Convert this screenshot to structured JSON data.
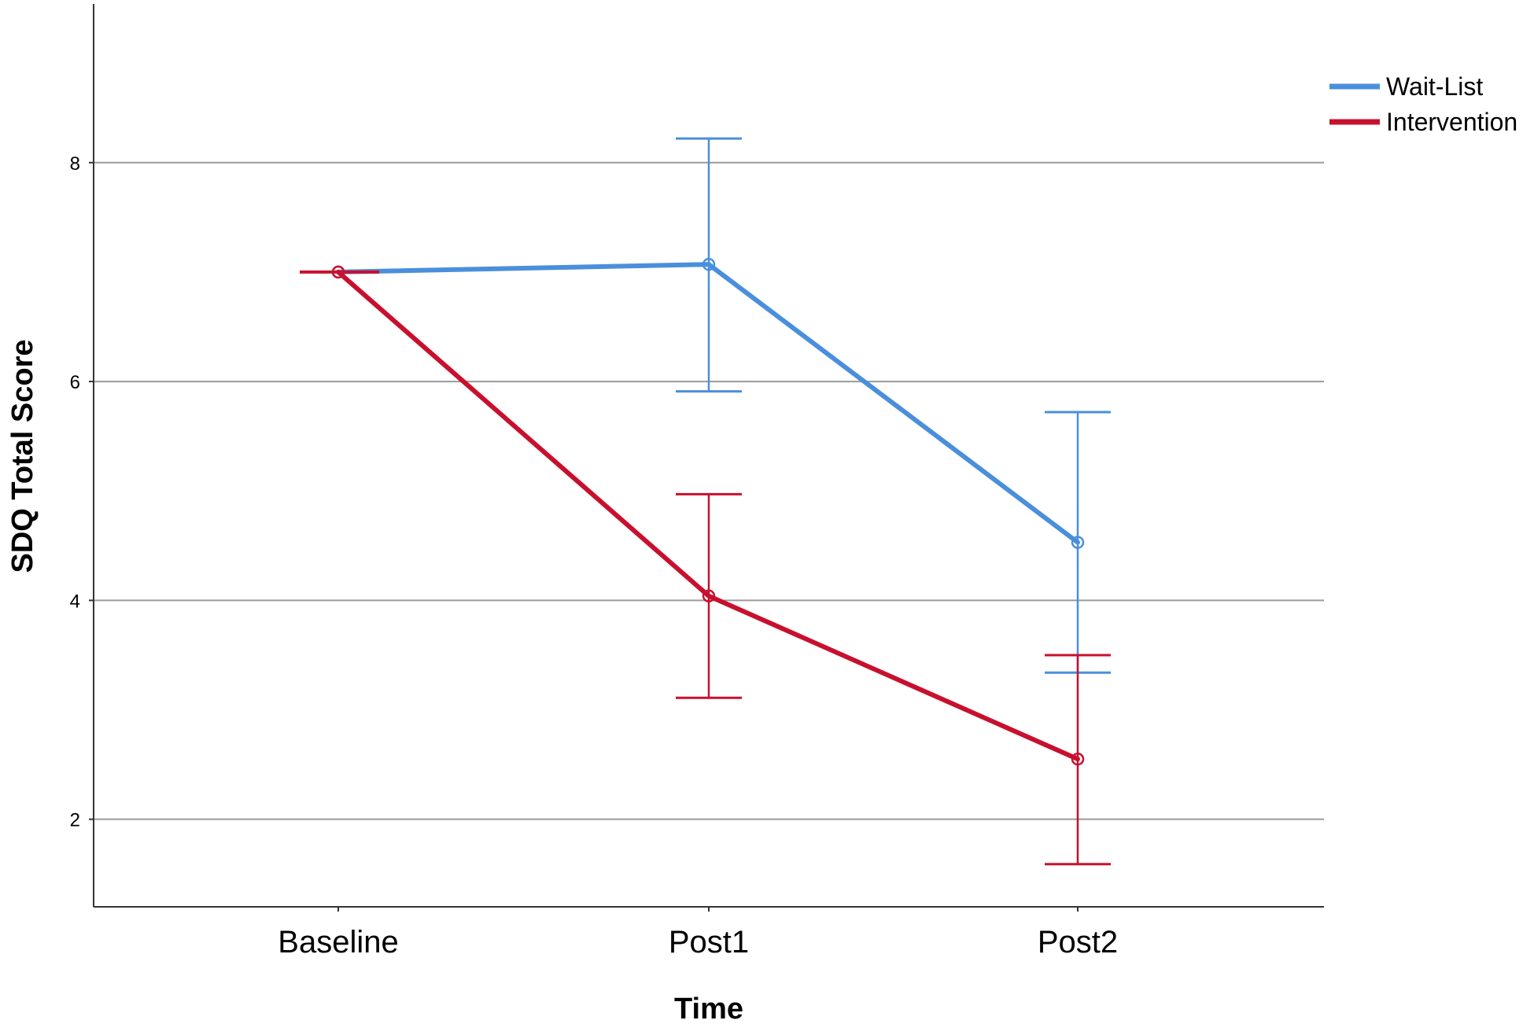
{
  "chart_data": {
    "type": "line",
    "categories": [
      "Baseline",
      "Post1",
      "Post2"
    ],
    "series": [
      {
        "name": "Wait-List",
        "color": "#4a8fdc",
        "values": [
          7.0,
          7.07,
          4.53
        ],
        "error_bars": [
          null,
          [
            5.91,
            8.22
          ],
          [
            3.34,
            5.72
          ]
        ]
      },
      {
        "name": "Intervention",
        "color": "#c8102e",
        "values": [
          7.0,
          4.04,
          2.55
        ],
        "error_bars": [
          null,
          [
            3.11,
            4.97
          ],
          [
            1.59,
            3.5
          ]
        ]
      }
    ],
    "yticks": [
      2,
      4,
      6,
      8
    ],
    "ylim": [
      1.2,
      9.45
    ],
    "xlabel": "Time",
    "ylabel": "SDQ Total Score",
    "grid": true,
    "legend_position": "top-right"
  }
}
